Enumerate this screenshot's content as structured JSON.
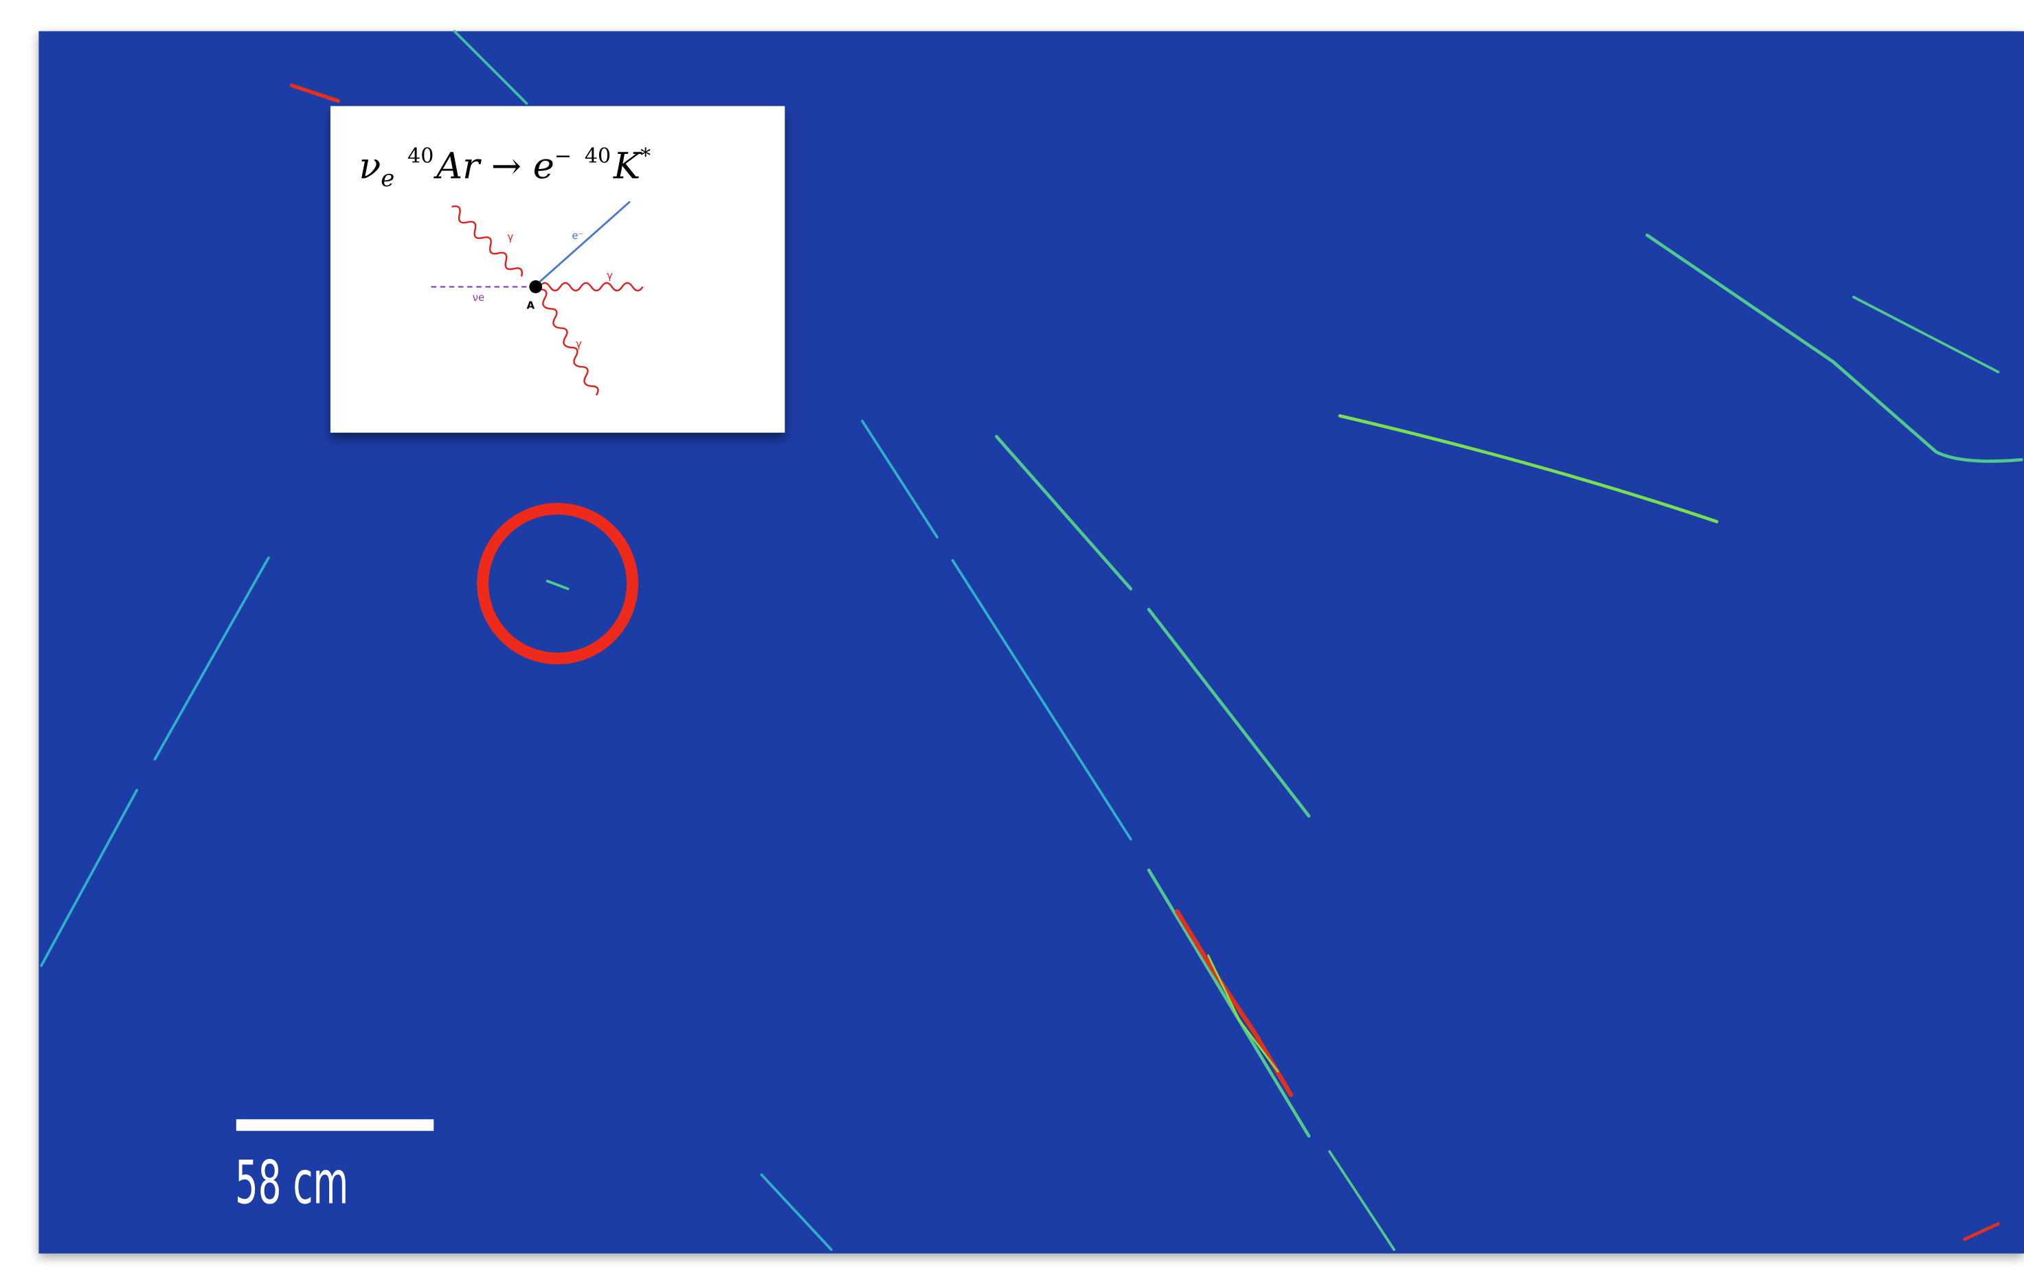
{
  "inset": {
    "formula": [
      "ν",
      "e",
      "40",
      "Ar → e",
      "−",
      "40",
      "K",
      "*"
    ],
    "diagram_labels": [
      "γ",
      "e⁻",
      "γ",
      "νe",
      "A",
      "γ"
    ]
  },
  "scale_bar": {
    "label": "58 cm"
  }
}
